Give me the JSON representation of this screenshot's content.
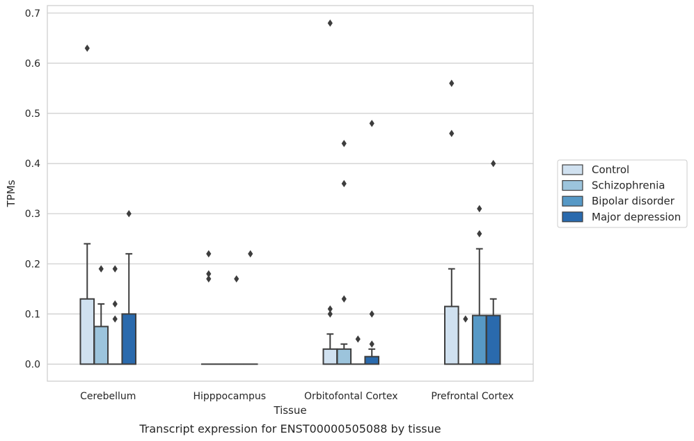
{
  "chart_data": {
    "type": "box",
    "title": "",
    "caption": "Transcript expression for ENST00000505088 by tissue",
    "xlabel": "Tissue",
    "ylabel": "TPMs",
    "ylim": [
      -0.034,
      0.715
    ],
    "yticks": [
      0.0,
      0.1,
      0.2,
      0.3,
      0.4,
      0.5,
      0.6,
      0.7
    ],
    "ytick_labels": [
      "0.0",
      "0.1",
      "0.2",
      "0.3",
      "0.4",
      "0.5",
      "0.6",
      "0.7"
    ],
    "grid": "horizontal",
    "legend_position": "right",
    "categories": [
      "Cerebellum",
      "Hipppocampus",
      "Orbitofontal Cortex",
      "Prefrontal Cortex"
    ],
    "series": [
      {
        "name": "Control",
        "color": "#d0e1f0",
        "boxes": [
          {
            "q1": 0.0,
            "median": 0.0,
            "q3": 0.13,
            "whisker_low": 0.0,
            "whisker_high": 0.24,
            "outliers": [
              0.63
            ]
          },
          {
            "q1": 0.0,
            "median": 0.0,
            "q3": 0.0,
            "whisker_low": 0.0,
            "whisker_high": 0.0,
            "outliers": [
              0.22,
              0.18,
              0.17
            ]
          },
          {
            "q1": 0.0,
            "median": 0.0,
            "q3": 0.03,
            "whisker_low": 0.0,
            "whisker_high": 0.06,
            "outliers": [
              0.68,
              0.11,
              0.1
            ]
          },
          {
            "q1": 0.0,
            "median": 0.0,
            "q3": 0.115,
            "whisker_low": 0.0,
            "whisker_high": 0.19,
            "outliers": [
              0.56,
              0.46
            ]
          }
        ]
      },
      {
        "name": "Schizophrenia",
        "color": "#9cc4dc",
        "boxes": [
          {
            "q1": 0.0,
            "median": 0.0,
            "q3": 0.075,
            "whisker_low": 0.0,
            "whisker_high": 0.12,
            "outliers": [
              0.19
            ]
          },
          {
            "q1": 0.0,
            "median": 0.0,
            "q3": 0.0,
            "whisker_low": 0.0,
            "whisker_high": 0.0,
            "outliers": []
          },
          {
            "q1": 0.0,
            "median": 0.0,
            "q3": 0.03,
            "whisker_low": 0.0,
            "whisker_high": 0.04,
            "outliers": [
              0.44,
              0.36,
              0.13
            ]
          },
          {
            "q1": 0.0,
            "median": 0.0,
            "q3": 0.0,
            "whisker_low": 0.0,
            "whisker_high": 0.0,
            "outliers": [
              0.09
            ]
          }
        ]
      },
      {
        "name": "Bipolar disorder",
        "color": "#5799c6",
        "boxes": [
          {
            "q1": 0.0,
            "median": 0.0,
            "q3": 0.0,
            "whisker_low": 0.0,
            "whisker_high": 0.0,
            "outliers": [
              0.19,
              0.12,
              0.09
            ]
          },
          {
            "q1": 0.0,
            "median": 0.0,
            "q3": 0.0,
            "whisker_low": 0.0,
            "whisker_high": 0.0,
            "outliers": [
              0.17
            ]
          },
          {
            "q1": 0.0,
            "median": 0.0,
            "q3": 0.0,
            "whisker_low": 0.0,
            "whisker_high": 0.0,
            "outliers": [
              0.05
            ]
          },
          {
            "q1": 0.0,
            "median": 0.0,
            "q3": 0.097,
            "whisker_low": 0.0,
            "whisker_high": 0.23,
            "outliers": [
              0.31,
              0.26
            ]
          }
        ]
      },
      {
        "name": "Major depression",
        "color": "#2a6aad",
        "boxes": [
          {
            "q1": 0.0,
            "median": 0.0,
            "q3": 0.1,
            "whisker_low": 0.0,
            "whisker_high": 0.22,
            "outliers": [
              0.3
            ]
          },
          {
            "q1": 0.0,
            "median": 0.0,
            "q3": 0.0,
            "whisker_low": 0.0,
            "whisker_high": 0.0,
            "outliers": [
              0.22
            ]
          },
          {
            "q1": 0.0,
            "median": 0.0,
            "q3": 0.015,
            "whisker_low": 0.0,
            "whisker_high": 0.03,
            "outliers": [
              0.48,
              0.1,
              0.04
            ]
          },
          {
            "q1": 0.0,
            "median": 0.0,
            "q3": 0.097,
            "whisker_low": 0.0,
            "whisker_high": 0.13,
            "outliers": [
              0.4
            ]
          }
        ]
      }
    ]
  },
  "colors": {
    "grid": "#cccccc",
    "frame": "#cccccc",
    "box_edge": "#3d3d3d",
    "outlier": "#3d3d3d",
    "text": "#262626"
  }
}
